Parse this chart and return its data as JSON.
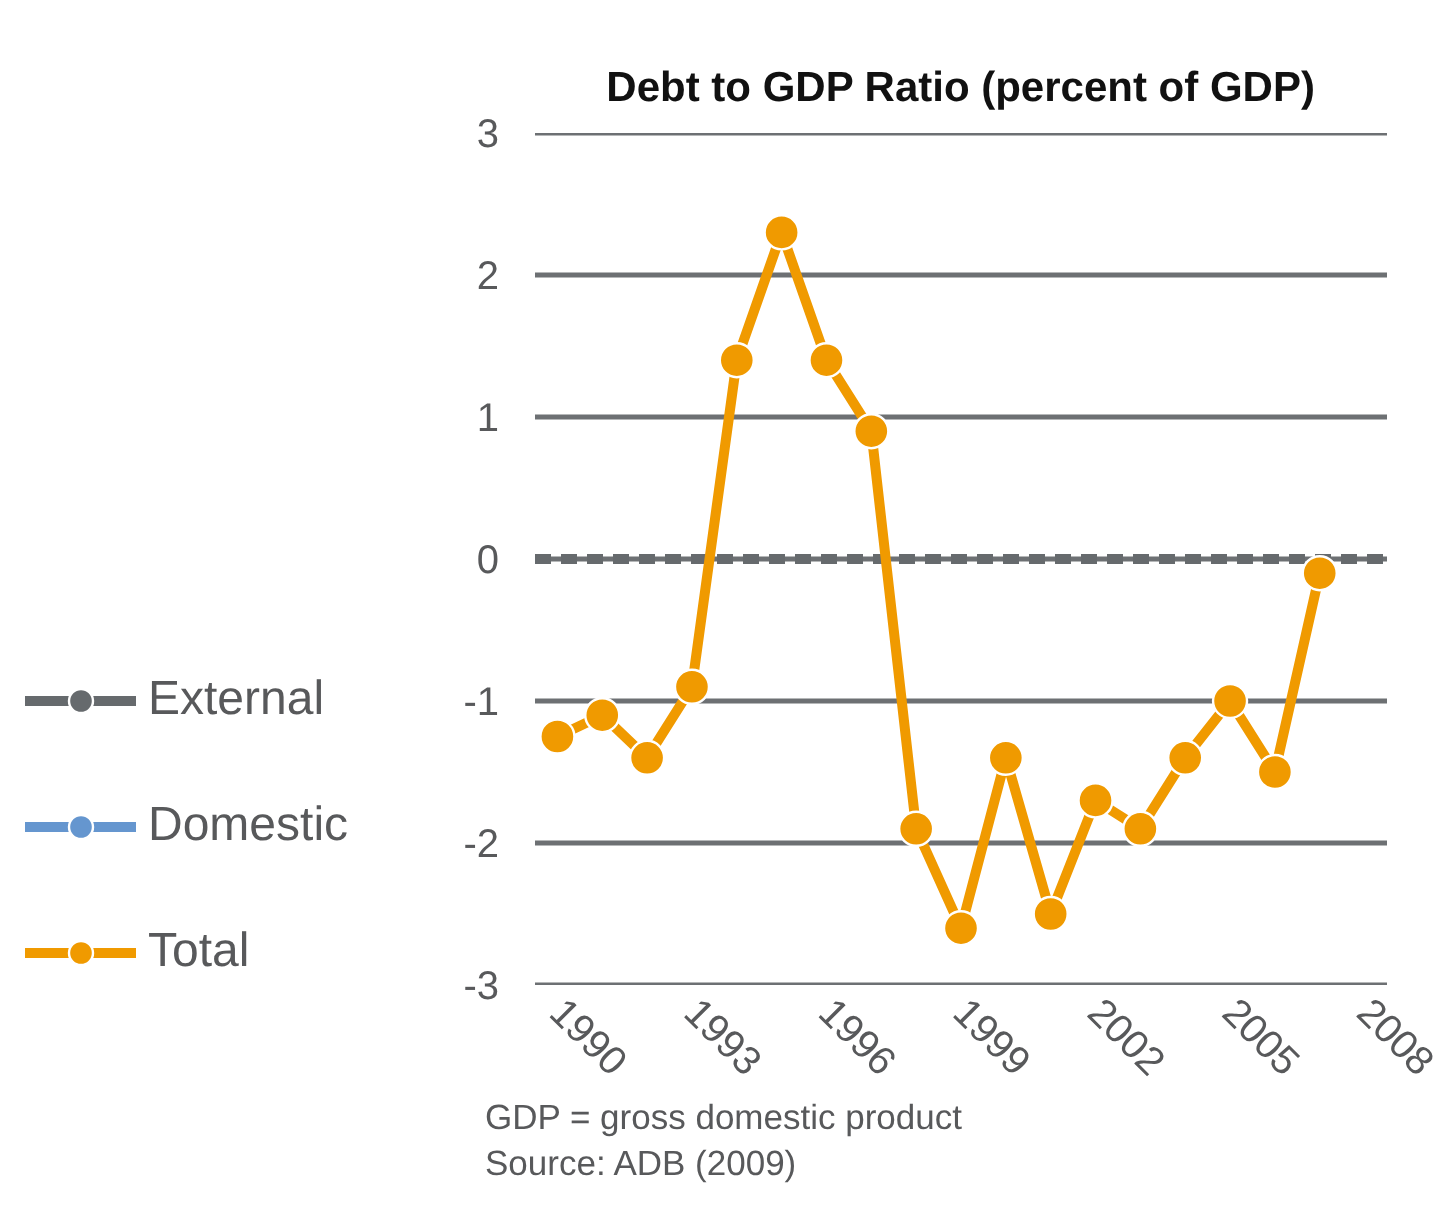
{
  "chart_data": {
    "type": "line",
    "title": "Debt to GDP Ratio (percent of GDP)",
    "x": [
      1990,
      1991,
      1992,
      1993,
      1994,
      1995,
      1996,
      1997,
      1998,
      1999,
      2000,
      2001,
      2002,
      2003,
      2004,
      2005,
      2006,
      2007
    ],
    "series": [
      {
        "name": "External",
        "color": "#666a6d",
        "values": [
          null,
          null,
          null,
          null,
          null,
          null,
          null,
          null,
          null,
          null,
          null,
          null,
          null,
          null,
          null,
          null,
          null,
          null
        ]
      },
      {
        "name": "Domestic",
        "color": "#6596cf",
        "values": [
          null,
          null,
          null,
          null,
          null,
          null,
          null,
          null,
          null,
          null,
          null,
          null,
          null,
          null,
          null,
          null,
          null,
          null
        ]
      },
      {
        "name": "Total",
        "color": "#f09a00",
        "values": [
          -1.25,
          -1.1,
          -1.4,
          -0.9,
          1.4,
          2.3,
          1.4,
          0.9,
          -1.9,
          -2.6,
          -1.4,
          -2.5,
          -1.7,
          -1.9,
          -1.4,
          -1.0,
          -1.5,
          -0.1
        ]
      }
    ],
    "xlim": [
      1989.5,
      2008.5
    ],
    "xticks": [
      1990,
      1993,
      1996,
      1999,
      2002,
      2005,
      2008
    ],
    "ylim": [
      -3,
      3
    ],
    "yticks": [
      -3,
      -2,
      -1,
      0,
      1,
      2,
      3
    ],
    "ref_lines": [
      {
        "axis": "y",
        "value": 0,
        "color": "#666a6d",
        "line_style": "dashed"
      }
    ],
    "grid": "y",
    "legend": "left",
    "marker": "circle",
    "line_style": "solid",
    "annotations": [
      "GDP = gross domestic product",
      "Source: ADB (2009)"
    ]
  }
}
